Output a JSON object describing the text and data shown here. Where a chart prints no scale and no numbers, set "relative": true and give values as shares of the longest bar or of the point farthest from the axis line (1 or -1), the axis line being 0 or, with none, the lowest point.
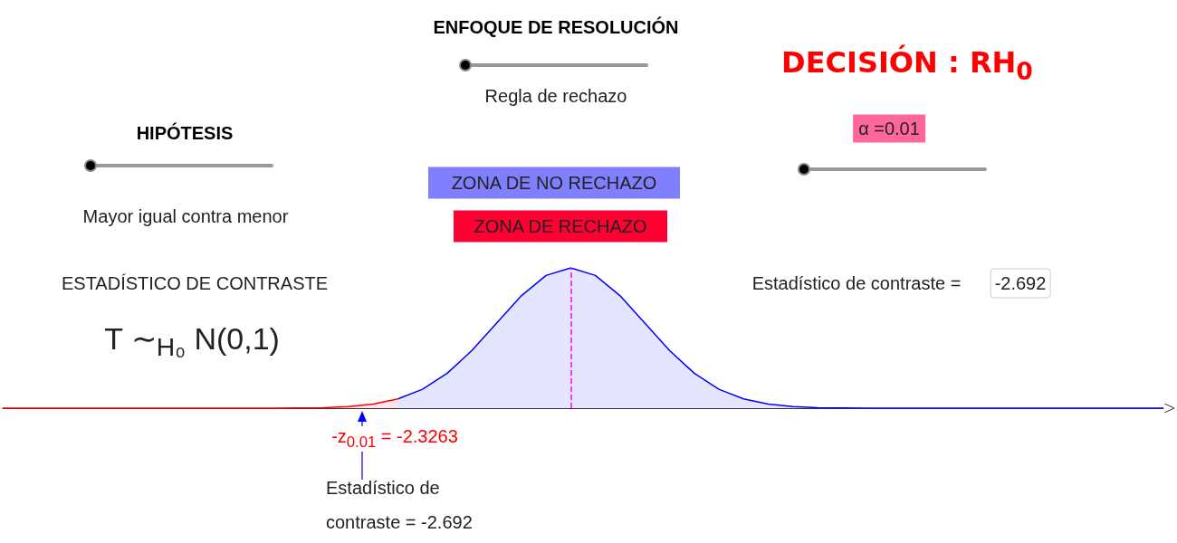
{
  "chart_data": {
    "type": "area",
    "relative": true,
    "marker": "none",
    "categories": [
      null,
      null,
      null,
      null,
      null,
      null,
      null,
      null,
      null,
      null,
      null,
      null,
      null,
      null,
      null,
      null,
      null,
      null,
      null,
      null,
      null,
      null,
      null,
      null,
      null,
      null,
      null,
      null,
      null,
      null,
      null,
      null,
      null,
      null,
      null,
      null,
      null,
      null,
      null,
      null,
      null,
      null,
      null,
      null,
      null,
      null,
      null,
      null
    ],
    "series": [
      {
        "color": "#ff0000",
        "values": [
          0,
          0,
          0,
          0,
          0,
          0,
          0,
          0,
          0,
          0,
          0,
          0,
          0.001,
          0.004,
          0.011,
          0.029,
          0.066,
          null,
          null,
          null,
          null,
          null,
          null,
          null,
          null,
          null,
          null,
          null,
          null,
          null,
          null,
          null,
          null,
          null,
          null,
          null,
          null,
          null,
          null,
          null,
          null,
          null,
          null,
          null,
          null,
          null,
          null,
          null
        ]
      },
      {
        "color": "#0000ff",
        "values": [
          null,
          null,
          null,
          null,
          null,
          null,
          null,
          null,
          null,
          null,
          null,
          null,
          null,
          null,
          null,
          null,
          0.066,
          0.135,
          0.249,
          0.411,
          0.607,
          0.801,
          0.946,
          1,
          0.946,
          0.801,
          0.607,
          0.411,
          0.249,
          0.135,
          0.066,
          0.029,
          0.011,
          0.004,
          0.001,
          0,
          0,
          0,
          0,
          0,
          0,
          0,
          0,
          0,
          0,
          0,
          0,
          0
        ]
      }
    ],
    "ref_lines": [
      {
        "axis": "x",
        "color": "#ff00ff",
        "line_style": "dashed"
      }
    ],
    "annotations": [
      "ENFOQUE DE RESOLUCIÓN",
      "Regla de rechazo",
      "HIPÓTESIS",
      "Mayor igual contra menor",
      "DECISIÓN : RH$_{0}$",
      "α =0.01",
      "ZONA DE NO RECHAZO",
      "ZONA DE RECHAZO",
      "ESTADÍSTICO DE CONTRASTE",
      "T ∼$_{H₀}$ N(0,1)",
      "Estadístico de contraste =",
      "-2.692",
      "-z$_{0.01}$ =  -2.3263",
      "Estadístico de contraste = -2.692"
    ]
  }
}
